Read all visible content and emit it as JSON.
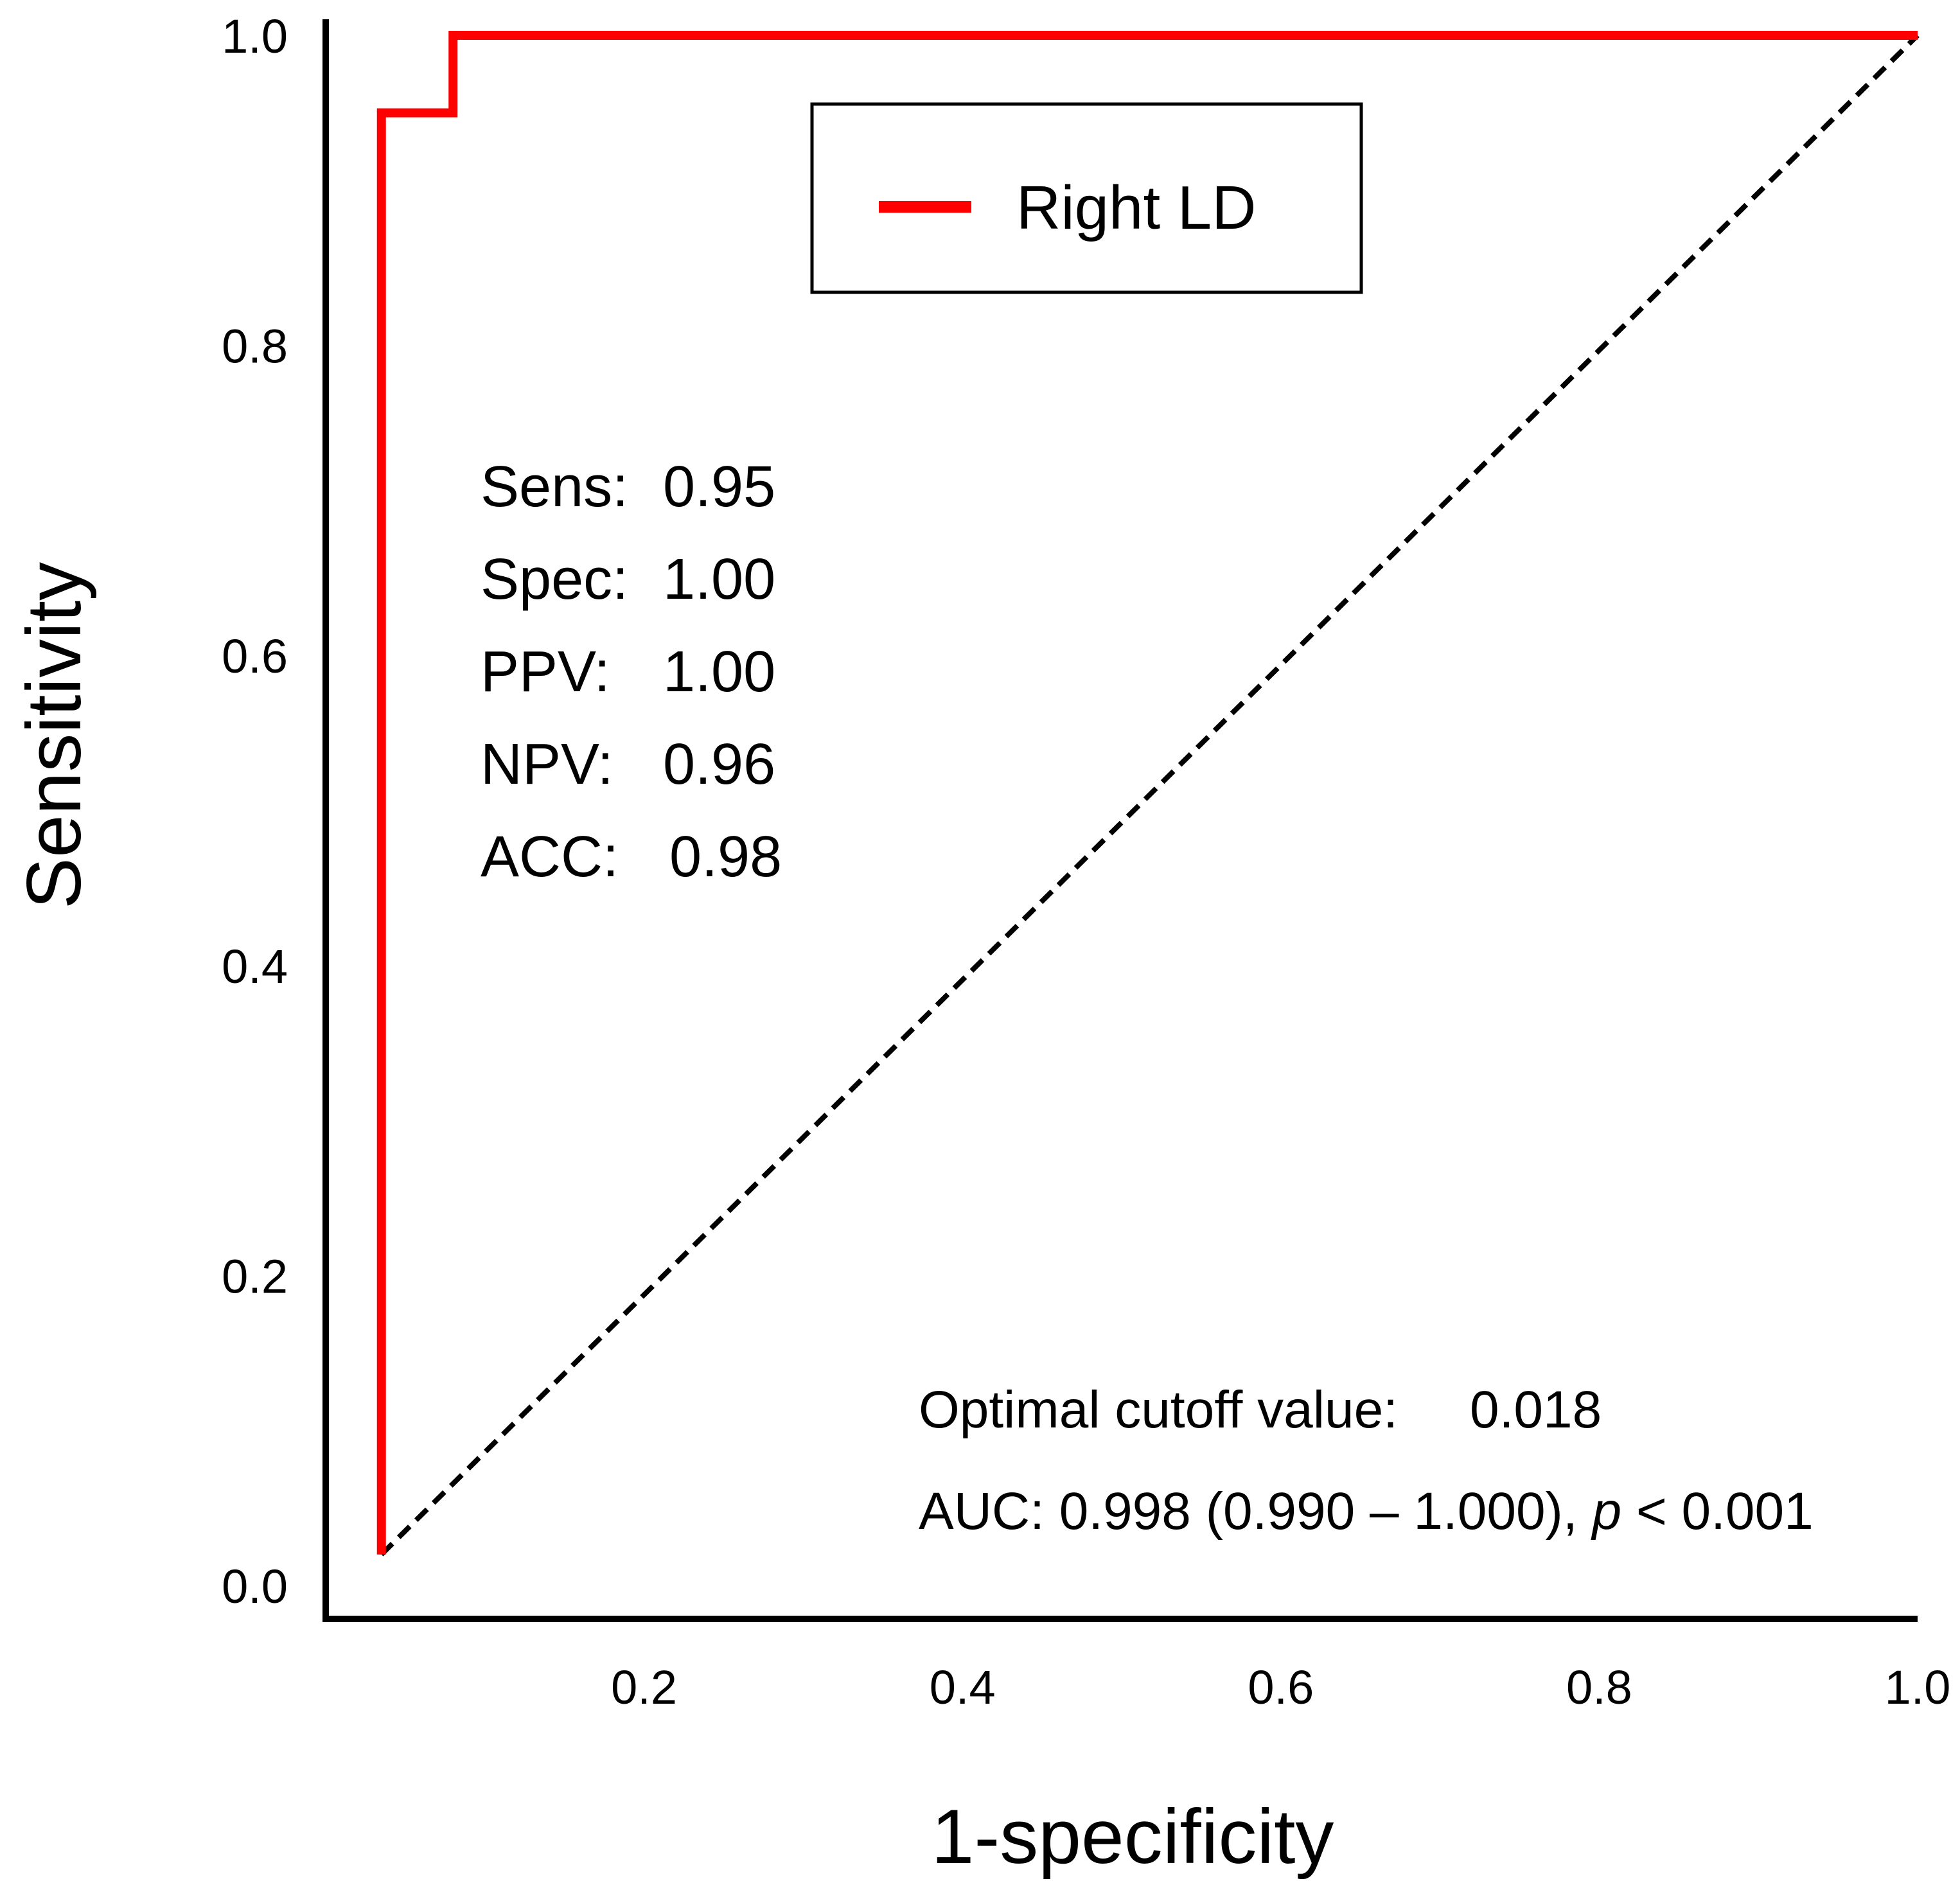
{
  "chart_data": {
    "type": "line",
    "title": "",
    "xlabel": "1-specificity",
    "ylabel": "Sensitivity",
    "xlim": [
      0.0,
      1.0
    ],
    "ylim": [
      0.0,
      1.0
    ],
    "x_ticks": [
      "0.2",
      "0.4",
      "0.6",
      "0.8",
      "1.0"
    ],
    "y_ticks": [
      "0.0",
      "0.2",
      "0.4",
      "0.6",
      "0.8",
      "1.0"
    ],
    "grid": false,
    "legend_position": "top-center",
    "series": [
      {
        "name": "Right LD",
        "color": "#ff0000",
        "x": [
          0.035,
          0.035,
          0.08,
          0.08,
          1.0
        ],
        "y": [
          0.02,
          0.95,
          0.95,
          1.0,
          1.0
        ]
      }
    ],
    "reference_line": {
      "name": "chance",
      "style": "dashed",
      "color": "#000000",
      "x": [
        0.035,
        1.0
      ],
      "y": [
        0.02,
        1.0
      ]
    },
    "stats": {
      "sens_label": "Sens:",
      "sens_value": "0.95",
      "spec_label": "Spec:",
      "spec_value": "1.00",
      "ppv_label": "PPV:",
      "ppv_value": "1.00",
      "npv_label": "NPV:",
      "npv_value": "0.96",
      "acc_label": "ACC:",
      "acc_value": "0.98"
    },
    "annotations": {
      "cutoff_label": "Optimal cutoff value:",
      "cutoff_value": "0.018",
      "auc_text": "AUC: 0.998 (0.990 – 1.000), ",
      "p_symbol": "p",
      "p_text": " < 0.001"
    }
  }
}
